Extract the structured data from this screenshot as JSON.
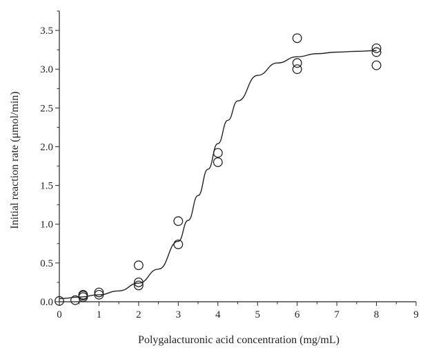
{
  "chart_data": {
    "type": "scatter",
    "title": "",
    "xlabel": "Polygalacturonic acid concentration (mg/mL)",
    "ylabel": "Initial reaction rate (μmol/min)",
    "xlim": [
      0,
      9
    ],
    "ylim": [
      0,
      3.75
    ],
    "x_ticks": [
      0,
      1,
      2,
      3,
      4,
      5,
      6,
      7,
      8,
      9
    ],
    "x_tick_labels": [
      "0",
      "1",
      "2",
      "3",
      "4",
      "5",
      "6",
      "7",
      "8",
      "9"
    ],
    "y_ticks": [
      0,
      0.5,
      1.0,
      1.5,
      2.0,
      2.5,
      3.0,
      3.5
    ],
    "y_tick_labels": [
      "0.0",
      "0.5",
      "1.0",
      "1.5",
      "2.0",
      "2.5",
      "3.0",
      "3.5"
    ],
    "grid": false,
    "series": [
      {
        "marker": "open-circle",
        "x": [
          0,
          0.4,
          0.6,
          0.6,
          0.6,
          1,
          1,
          2,
          2,
          2,
          3,
          3,
          4,
          4,
          6,
          6,
          6,
          8,
          8,
          8
        ],
        "y": [
          0.01,
          0.02,
          0.06,
          0.08,
          0.09,
          0.09,
          0.12,
          0.21,
          0.25,
          0.47,
          0.74,
          1.04,
          1.8,
          1.92,
          3.0,
          3.08,
          3.4,
          3.05,
          3.22,
          3.27
        ]
      }
    ],
    "fit_curve": {
      "model": "sigmoid",
      "x": [
        0,
        0.5,
        1,
        1.5,
        2,
        2.5,
        3,
        3.25,
        3.5,
        3.75,
        4,
        4.25,
        4.5,
        5,
        5.5,
        6,
        6.5,
        7,
        7.5,
        8
      ],
      "y": [
        0.04,
        0.06,
        0.09,
        0.14,
        0.24,
        0.42,
        0.78,
        1.05,
        1.37,
        1.71,
        2.04,
        2.34,
        2.59,
        2.92,
        3.08,
        3.16,
        3.2,
        3.22,
        3.23,
        3.24
      ]
    },
    "colors": {
      "marker": "#222222",
      "line": "#222222",
      "axis": "#222222"
    }
  }
}
